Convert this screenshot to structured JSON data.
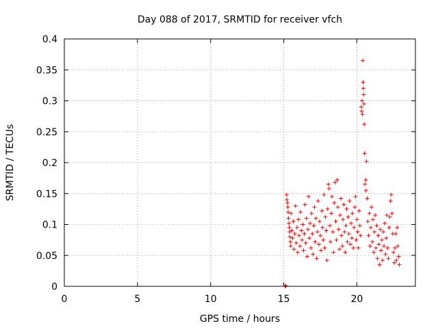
{
  "chart_data": {
    "type": "scatter",
    "title": "Day 088 of 2017, SRMTID for receiver vfch",
    "xlabel": "GPS time / hours",
    "ylabel": "SRMTID / TECUs",
    "xlim": [
      0,
      24
    ],
    "ylim": [
      0,
      0.4
    ],
    "x_ticks": [
      0,
      5,
      10,
      15,
      20
    ],
    "x_tick_labels": [
      "0",
      "5",
      "10",
      "15",
      "20"
    ],
    "y_ticks": [
      0,
      0.05,
      0.1,
      0.15,
      0.2,
      0.25,
      0.3,
      0.35,
      0.4
    ],
    "y_tick_labels": [
      "0",
      "0.05",
      "0.1",
      "0.15",
      "0.2",
      "0.25",
      "0.3",
      "0.35",
      "0.4"
    ],
    "grid": true,
    "marker": "plus",
    "colors": {
      "series": "#ff0000",
      "grid": "#a0a0a0",
      "axis": "#000000"
    },
    "series": [
      {
        "name": "SRMTID",
        "points": [
          [
            15.1,
            0.0
          ],
          [
            15.12,
            0.0
          ],
          [
            15.14,
            0.001
          ],
          [
            15.2,
            0.148
          ],
          [
            15.22,
            0.14
          ],
          [
            15.25,
            0.135
          ],
          [
            15.28,
            0.128
          ],
          [
            15.3,
            0.12
          ],
          [
            15.32,
            0.11
          ],
          [
            15.35,
            0.102
          ],
          [
            15.38,
            0.095
          ],
          [
            15.4,
            0.088
          ],
          [
            15.42,
            0.08
          ],
          [
            15.45,
            0.072
          ],
          [
            15.48,
            0.065
          ],
          [
            15.5,
            0.118
          ],
          [
            15.55,
            0.09
          ],
          [
            15.6,
            0.078
          ],
          [
            15.65,
            0.105
          ],
          [
            15.7,
            0.06
          ],
          [
            15.75,
            0.085
          ],
          [
            15.8,
            0.13
          ],
          [
            15.85,
            0.07
          ],
          [
            15.9,
            0.095
          ],
          [
            15.95,
            0.055
          ],
          [
            16.0,
            0.108
          ],
          [
            16.05,
            0.082
          ],
          [
            16.1,
            0.065
          ],
          [
            16.15,
            0.12
          ],
          [
            16.2,
            0.09
          ],
          [
            16.25,
            0.075
          ],
          [
            16.3,
            0.1
          ],
          [
            16.35,
            0.058
          ],
          [
            16.4,
            0.085
          ],
          [
            16.45,
            0.132
          ],
          [
            16.5,
            0.07
          ],
          [
            16.55,
            0.11
          ],
          [
            16.6,
            0.048
          ],
          [
            16.65,
            0.092
          ],
          [
            16.7,
            0.145
          ],
          [
            16.75,
            0.078
          ],
          [
            16.8,
            0.102
          ],
          [
            16.85,
            0.062
          ],
          [
            16.9,
            0.118
          ],
          [
            16.95,
            0.085
          ],
          [
            17.0,
            0.052
          ],
          [
            17.05,
            0.098
          ],
          [
            17.1,
            0.128
          ],
          [
            17.15,
            0.072
          ],
          [
            17.2,
            0.11
          ],
          [
            17.25,
            0.045
          ],
          [
            17.3,
            0.088
          ],
          [
            17.35,
            0.138
          ],
          [
            17.4,
            0.068
          ],
          [
            17.45,
            0.105
          ],
          [
            17.5,
            0.082
          ],
          [
            17.55,
            0.058
          ],
          [
            17.6,
            0.122
          ],
          [
            17.65,
            0.095
          ],
          [
            17.7,
            0.075
          ],
          [
            17.75,
            0.148
          ],
          [
            17.8,
            0.062
          ],
          [
            17.85,
            0.112
          ],
          [
            17.9,
            0.09
          ],
          [
            17.95,
            0.042
          ],
          [
            18.0,
            0.125
          ],
          [
            18.05,
            0.165
          ],
          [
            18.1,
            0.158
          ],
          [
            18.15,
            0.098
          ],
          [
            18.2,
            0.072
          ],
          [
            18.25,
            0.118
          ],
          [
            18.3,
            0.145
          ],
          [
            18.35,
            0.088
          ],
          [
            18.4,
            0.055
          ],
          [
            18.45,
            0.135
          ],
          [
            18.5,
            0.168
          ],
          [
            18.55,
            0.105
          ],
          [
            18.6,
            0.075
          ],
          [
            18.65,
            0.172
          ],
          [
            18.7,
            0.128
          ],
          [
            18.75,
            0.092
          ],
          [
            18.8,
            0.06
          ],
          [
            18.85,
            0.115
          ],
          [
            18.9,
            0.142
          ],
          [
            18.95,
            0.082
          ],
          [
            19.0,
            0.065
          ],
          [
            19.05,
            0.108
          ],
          [
            19.1,
            0.132
          ],
          [
            19.15,
            0.088
          ],
          [
            19.2,
            0.055
          ],
          [
            19.25,
            0.098
          ],
          [
            19.3,
            0.125
          ],
          [
            19.35,
            0.072
          ],
          [
            19.4,
            0.112
          ],
          [
            19.45,
            0.085
          ],
          [
            19.5,
            0.138
          ],
          [
            19.55,
            0.068
          ],
          [
            19.6,
            0.102
          ],
          [
            19.65,
            0.078
          ],
          [
            19.7,
            0.118
          ],
          [
            19.75,
            0.062
          ],
          [
            19.8,
            0.095
          ],
          [
            19.85,
            0.128
          ],
          [
            19.9,
            0.145
          ],
          [
            19.95,
            0.075
          ],
          [
            20.0,
            0.108
          ],
          [
            20.05,
            0.088
          ],
          [
            20.1,
            0.062
          ],
          [
            20.15,
            0.122
          ],
          [
            20.2,
            0.098
          ],
          [
            20.25,
            0.082
          ],
          [
            20.3,
            0.29
          ],
          [
            20.32,
            0.283
          ],
          [
            20.35,
            0.3
          ],
          [
            20.38,
            0.278
          ],
          [
            20.4,
            0.365
          ],
          [
            20.42,
            0.33
          ],
          [
            20.44,
            0.32
          ],
          [
            20.46,
            0.31
          ],
          [
            20.48,
            0.295
          ],
          [
            20.5,
            0.262
          ],
          [
            20.52,
            0.215
          ],
          [
            20.55,
            0.165
          ],
          [
            20.6,
            0.172
          ],
          [
            20.62,
            0.155
          ],
          [
            20.65,
            0.202
          ],
          [
            20.7,
            0.142
          ],
          [
            20.75,
            0.105
          ],
          [
            20.8,
            0.082
          ],
          [
            20.85,
            0.118
          ],
          [
            20.9,
            0.065
          ],
          [
            20.95,
            0.095
          ],
          [
            21.0,
            0.128
          ],
          [
            21.05,
            0.072
          ],
          [
            21.1,
            0.108
          ],
          [
            21.15,
            0.055
          ],
          [
            21.2,
            0.088
          ],
          [
            21.25,
            0.115
          ],
          [
            21.3,
            0.062
          ],
          [
            21.35,
            0.098
          ],
          [
            21.4,
            0.045
          ],
          [
            21.45,
            0.082
          ],
          [
            21.5,
            0.068
          ],
          [
            21.55,
            0.035
          ],
          [
            21.6,
            0.092
          ],
          [
            21.65,
            0.058
          ],
          [
            21.7,
            0.075
          ],
          [
            21.75,
            0.042
          ],
          [
            21.8,
            0.088
          ],
          [
            21.85,
            0.065
          ],
          [
            21.9,
            0.102
          ],
          [
            21.95,
            0.052
          ],
          [
            22.0,
            0.078
          ],
          [
            22.05,
            0.115
          ],
          [
            22.1,
            0.062
          ],
          [
            22.15,
            0.045
          ],
          [
            22.2,
            0.095
          ],
          [
            22.25,
            0.112
          ],
          [
            22.3,
            0.138
          ],
          [
            22.35,
            0.148
          ],
          [
            22.4,
            0.118
          ],
          [
            22.45,
            0.085
          ],
          [
            22.5,
            0.055
          ],
          [
            22.55,
            0.038
          ],
          [
            22.6,
            0.062
          ],
          [
            22.65,
            0.085
          ],
          [
            22.7,
            0.042
          ],
          [
            22.75,
            0.095
          ],
          [
            22.8,
            0.065
          ],
          [
            22.85,
            0.048
          ],
          [
            22.9,
            0.035
          ]
        ]
      }
    ]
  }
}
